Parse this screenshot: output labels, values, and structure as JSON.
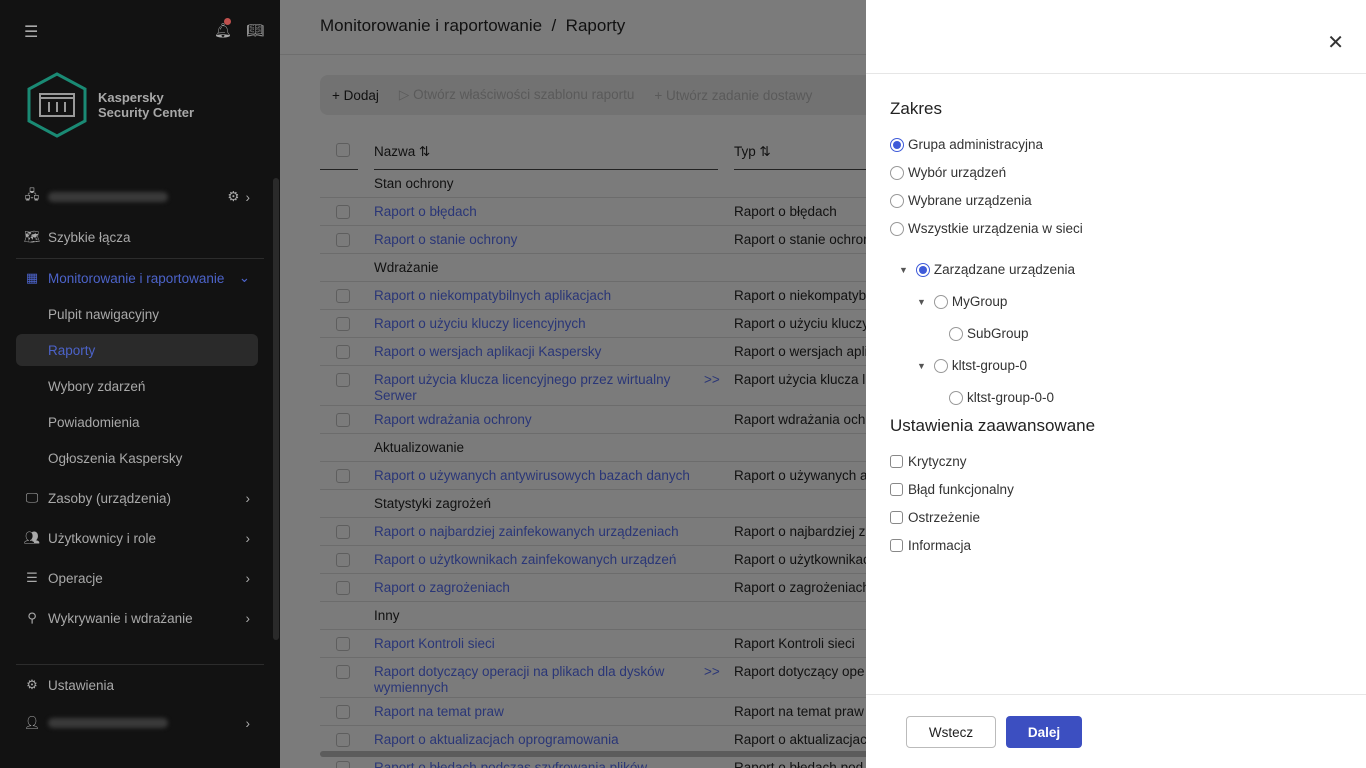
{
  "sidebar": {
    "brand_line1": "Kaspersky",
    "brand_line2": "Security Center",
    "items": [
      {
        "label": "Szybkie łącza"
      },
      {
        "label": "Monitorowanie i raportowanie"
      },
      {
        "label": "Pulpit nawigacyjny"
      },
      {
        "label": "Raporty"
      },
      {
        "label": "Wybory zdarzeń"
      },
      {
        "label": "Powiadomienia"
      },
      {
        "label": "Ogłoszenia Kaspersky"
      },
      {
        "label": "Zasoby (urządzenia)"
      },
      {
        "label": "Użytkownicy i role"
      },
      {
        "label": "Operacje"
      },
      {
        "label": "Wykrywanie i wdrażanie"
      },
      {
        "label": "Ustawienia"
      }
    ]
  },
  "header": {
    "breadcrumb": "Monitorowanie i raportowanie  /  Raporty"
  },
  "toolbar": {
    "add": "Dodaj",
    "open_props": "Otwórz właściwości szablonu raportu",
    "create_task": "Utwórz zadanie dostawy"
  },
  "table": {
    "col_name": "Nazwa ⇅",
    "col_type": "Typ ⇅",
    "more": ">>",
    "rows": [
      {
        "group": "Stan ochrony"
      },
      {
        "name": "Raport o błędach",
        "type": "Raport o błędach"
      },
      {
        "name": "Raport o stanie ochrony",
        "type": "Raport o stanie ochrony"
      },
      {
        "group": "Wdrażanie"
      },
      {
        "name": "Raport o niekompatybilnych aplikacjach",
        "type": "Raport o niekompatybilnych"
      },
      {
        "name": "Raport o użyciu kluczy licencyjnych",
        "type": "Raport o użyciu kluczy"
      },
      {
        "name": "Raport o wersjach aplikacji Kaspersky",
        "type": "Raport o wersjach aplikacji"
      },
      {
        "name": "Raport użycia klucza licencyjnego przez wirtualny Serwer",
        "type": "Raport użycia klucza lic",
        "more": true
      },
      {
        "name": "Raport wdrażania ochrony",
        "type": "Raport wdrażania ochrony"
      },
      {
        "group": "Aktualizowanie"
      },
      {
        "name": "Raport o używanych antywirusowych bazach danych",
        "type": "Raport o używanych a"
      },
      {
        "group": "Statystyki zagrożeń"
      },
      {
        "name": "Raport o najbardziej zainfekowanych urządzeniach",
        "type": "Raport o najbardziej za"
      },
      {
        "name": "Raport o użytkownikach zainfekowanych urządzeń",
        "type": "Raport o użytkownikach"
      },
      {
        "name": "Raport o zagrożeniach",
        "type": "Raport o zagrożeniach"
      },
      {
        "group": "Inny"
      },
      {
        "name": "Raport Kontroli sieci",
        "type": "Raport Kontroli sieci"
      },
      {
        "name": "Raport dotyczący operacji na plikach dla dysków wymiennych",
        "type": "Raport dotyczący ope",
        "more": true
      },
      {
        "name": "Raport na temat praw",
        "type": "Raport na temat praw"
      },
      {
        "name": "Raport o aktualizacjach oprogramowania",
        "type": "Raport o aktualizacjach"
      },
      {
        "name": "Raport o błędach podczas szyfrowania plików",
        "type": "Raport o błędach pod"
      }
    ]
  },
  "panel": {
    "scope_title": "Zakres",
    "scope_options": [
      "Grupa administracyjna",
      "Wybór urządzeń",
      "Wybrane urządzenia",
      "Wszystkie urządzenia w sieci"
    ],
    "selected_scope": "Grupa administracyjna",
    "tree": [
      "Zarządzane urządzenia",
      "MyGroup",
      "SubGroup",
      "kltst-group-0",
      "kltst-group-0-0"
    ],
    "advanced_title": "Ustawienia zaawansowane",
    "checks": [
      "Krytyczny",
      "Błąd funkcjonalny",
      "Ostrzeżenie",
      "Informacja"
    ],
    "back": "Wstecz",
    "next": "Dalej"
  },
  "colors": {
    "accent": "#3c4fc1",
    "sidebar_bg": "#121212",
    "notification_dot": "#c0504d",
    "logo": "#1a8a74"
  }
}
